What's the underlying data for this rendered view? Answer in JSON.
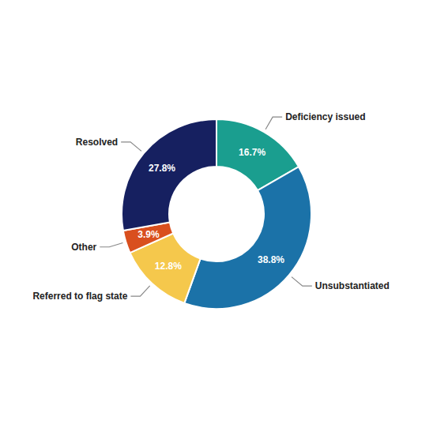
{
  "chart_data": {
    "type": "donut",
    "categories": [
      "Deficiency issued",
      "Unsubstantiated",
      "Referred to flag state",
      "Other",
      "Resolved"
    ],
    "values": [
      16.7,
      38.8,
      12.8,
      3.9,
      27.8
    ],
    "value_labels": [
      "16.7%",
      "38.8%",
      "12.8%",
      "3.9%",
      "27.8%"
    ],
    "colors": [
      "#1a9e8f",
      "#1b72a8",
      "#f5c84c",
      "#d94f1e",
      "#162060"
    ],
    "data_labels": true
  }
}
